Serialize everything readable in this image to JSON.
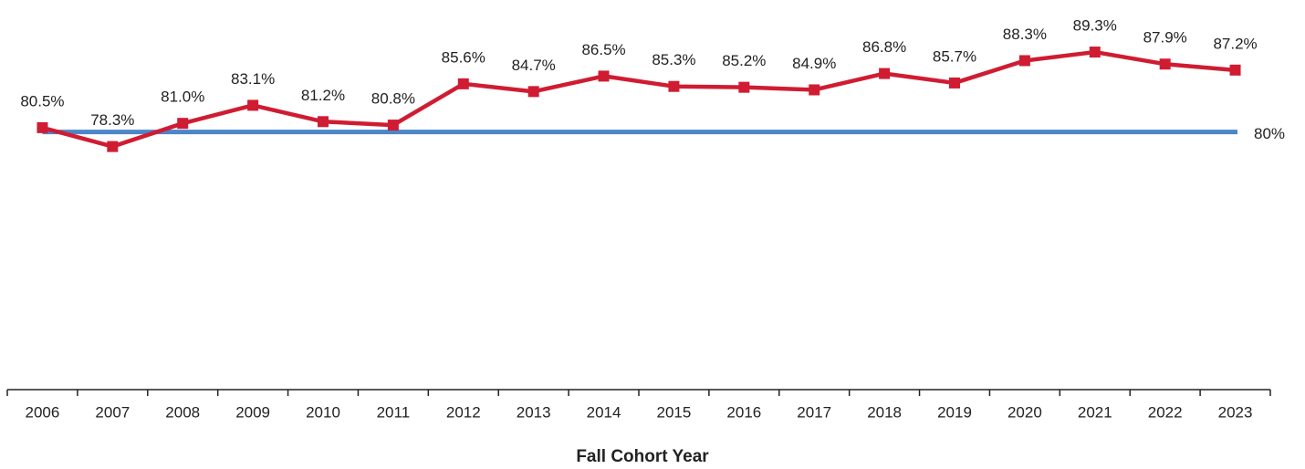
{
  "chart_data": {
    "type": "line",
    "x_label": "Fall Cohort Year",
    "categories": [
      "2006",
      "2007",
      "2008",
      "2009",
      "2010",
      "2011",
      "2012",
      "2013",
      "2014",
      "2015",
      "2016",
      "2017",
      "2018",
      "2019",
      "2020",
      "2021",
      "2022",
      "2023"
    ],
    "series": [
      {
        "color": "#d01c32",
        "values": [
          80.5,
          78.3,
          81.0,
          83.1,
          81.2,
          80.8,
          85.6,
          84.7,
          86.5,
          85.3,
          85.2,
          84.9,
          86.8,
          85.7,
          88.3,
          89.3,
          87.9,
          87.2
        ],
        "value_labels": [
          "80.5%",
          "78.3%",
          "81.0%",
          "83.1%",
          "81.2%",
          "80.8%",
          "85.6%",
          "84.7%",
          "86.5%",
          "85.3%",
          "85.2%",
          "84.9%",
          "86.8%",
          "85.7%",
          "88.3%",
          "89.3%",
          "87.9%",
          "87.2%"
        ]
      }
    ],
    "target": {
      "value": 80,
      "label": "80%",
      "color": "#4a86c8"
    },
    "ylim": [
      50,
      95
    ]
  }
}
